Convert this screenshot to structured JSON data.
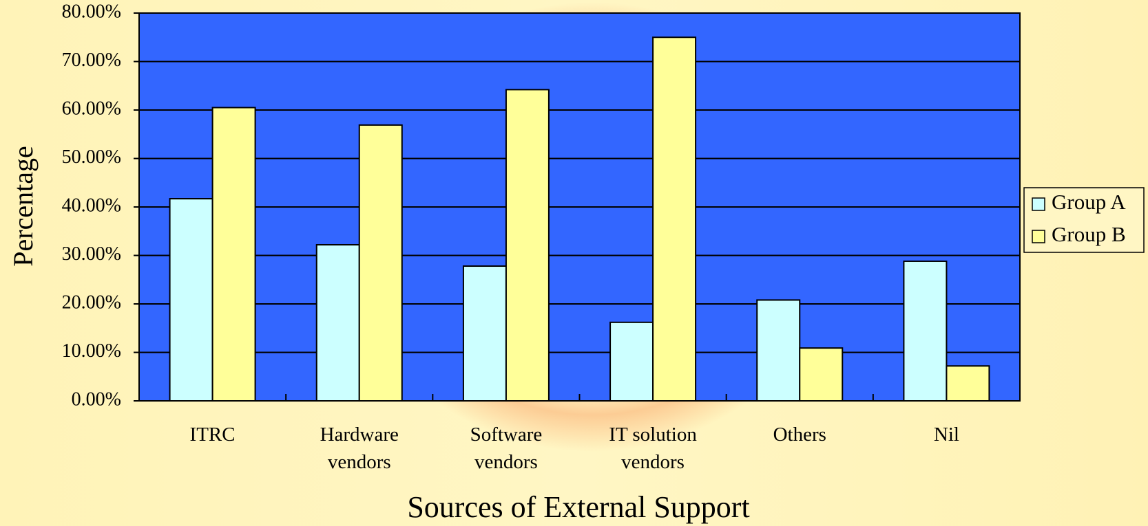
{
  "chart_data": {
    "type": "bar",
    "x_label": "Sources of External Support",
    "y_label": "Percentage",
    "categories": [
      "ITRC",
      "Hardware vendors",
      "Software vendors",
      "IT solution vendors",
      "Others",
      "Nil"
    ],
    "series": [
      {
        "name": "Group A",
        "color": "#ccffff",
        "values": [
          41.7,
          32.2,
          27.8,
          16.2,
          20.8,
          28.8
        ]
      },
      {
        "name": "Group B",
        "color": "#ffff99",
        "values": [
          60.5,
          56.9,
          64.2,
          75.0,
          10.9,
          7.2
        ]
      }
    ],
    "ylim": [
      0,
      80
    ],
    "yticks": [
      {
        "value": 0,
        "label": "0.00%"
      },
      {
        "value": 10,
        "label": "10.00%"
      },
      {
        "value": 20,
        "label": "20.00%"
      },
      {
        "value": 30,
        "label": "30.00%"
      },
      {
        "value": 40,
        "label": "40.00%"
      },
      {
        "value": 50,
        "label": "50.00%"
      },
      {
        "value": 60,
        "label": "60.00%"
      },
      {
        "value": 70,
        "label": "70.00%"
      },
      {
        "value": 80,
        "label": "80.00%"
      }
    ],
    "grid": true,
    "plot_color": "#3366ff",
    "legend": "right"
  }
}
